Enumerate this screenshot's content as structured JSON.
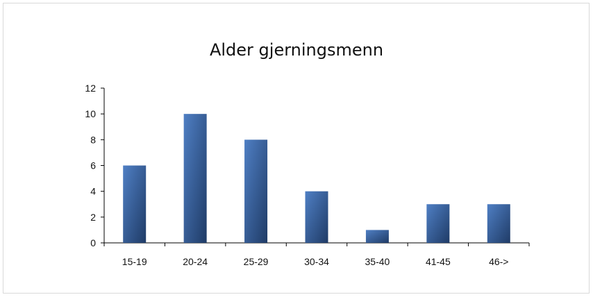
{
  "chart_data": {
    "type": "bar",
    "title": "Alder gjerningsmenn",
    "xlabel": "",
    "ylabel": "",
    "categories": [
      "15-19",
      "20-24",
      "25-29",
      "30-34",
      "35-40",
      "41-45",
      "46->"
    ],
    "values": [
      6,
      10,
      8,
      4,
      1,
      3,
      3
    ],
    "ylim": [
      0,
      12
    ],
    "yticks": [
      0,
      2,
      4,
      6,
      8,
      10,
      12
    ],
    "grid": false,
    "legend": "none",
    "colors": {
      "bar_top": "#4f7fc4",
      "bar_bottom": "#1f3b66",
      "axis": "#000000"
    }
  }
}
